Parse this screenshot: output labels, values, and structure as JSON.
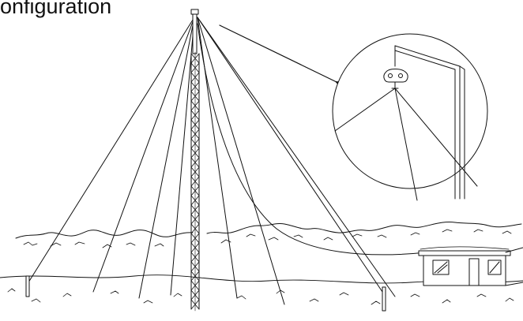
{
  "title": "onfiguration",
  "colors": {
    "ink": "#111111",
    "background": "#ffffff"
  },
  "icons": {
    "pointer": "arrow-icon",
    "detail": "magnifier-circle"
  }
}
